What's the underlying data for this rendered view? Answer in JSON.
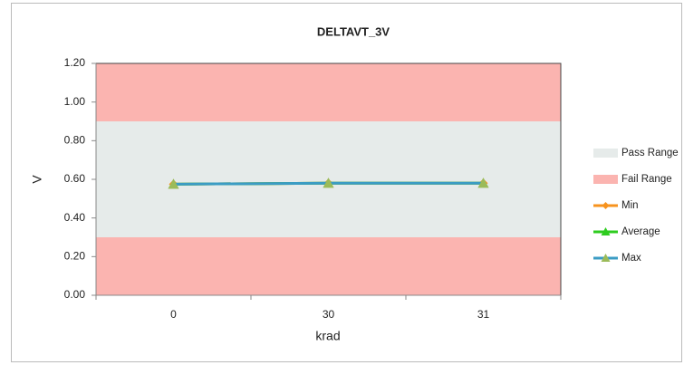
{
  "chart_data": {
    "type": "line",
    "title": "DELTAVT_3V",
    "x_label": "krad",
    "y_label": "V",
    "categories": [
      "0",
      "30",
      "31"
    ],
    "ylim": [
      0,
      1.2
    ],
    "yticks": [
      {
        "value": 0,
        "label": "0.00"
      },
      {
        "value": 0.2,
        "label": "0.20"
      },
      {
        "value": 0.4,
        "label": "0.40"
      },
      {
        "value": 0.6,
        "label": "0.60"
      },
      {
        "value": 0.8,
        "label": "0.80"
      },
      {
        "value": 1.0,
        "label": "1.00"
      },
      {
        "value": 1.2,
        "label": "1.20"
      }
    ],
    "legend": "right",
    "series": [
      {
        "name": "Pass Range",
        "color": "#e6ebea",
        "kind": "band",
        "ranges": [
          [
            0.3,
            0.9
          ]
        ]
      },
      {
        "name": "Fail Range",
        "color": "#fbb4b0",
        "kind": "band",
        "ranges": [
          [
            0,
            0.3
          ],
          [
            0.9,
            1.2
          ]
        ]
      },
      {
        "name": "Min",
        "color": "#f7931e",
        "kind": "line",
        "marker": "diamond",
        "values": [
          0.575,
          0.58,
          0.58
        ]
      },
      {
        "name": "Average",
        "color": "#2ecc1f",
        "kind": "line",
        "marker": "triangle",
        "values": [
          0.575,
          0.58,
          0.58
        ]
      },
      {
        "name": "Max",
        "color": "#3b9cc4",
        "kind": "line",
        "marker": "triangle",
        "values": [
          0.575,
          0.58,
          0.58
        ]
      }
    ]
  }
}
